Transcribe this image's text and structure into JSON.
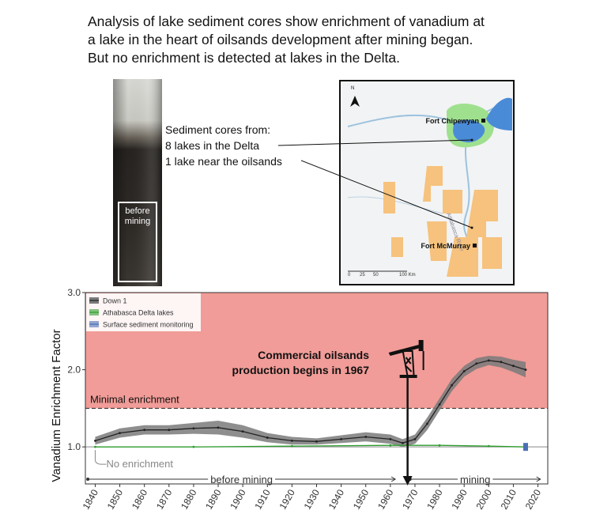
{
  "header": {
    "lines": [
      "Analysis of lake sediment cores show enrichment of vanadium at",
      "a lake in the heart of oilsands development after mining began.",
      "But no enrichment is detected at lakes in the Delta."
    ]
  },
  "photo": {
    "label": [
      "before",
      "mining"
    ]
  },
  "map": {
    "callout": [
      "Sediment cores from:",
      "8 lakes in the Delta",
      "1 lake near the oilsands"
    ],
    "north": "N",
    "river": "Athabasca River",
    "towns": [
      "Fort Chipewyan",
      "Fort McMurray"
    ],
    "scale": [
      "0",
      "25",
      "50",
      "100 Km"
    ]
  },
  "chart_data": {
    "type": "line",
    "ylabel": "Vanadium Enrichment Factor",
    "xlim": [
      1836,
      2024
    ],
    "ylim": [
      0.52,
      3.0
    ],
    "xticks": [
      1840,
      1850,
      1860,
      1870,
      1880,
      1890,
      1900,
      1910,
      1920,
      1930,
      1940,
      1950,
      1960,
      1970,
      1980,
      1990,
      2000,
      2010,
      2020
    ],
    "yticks": [
      {
        "value": 1,
        "label": "1.0"
      },
      {
        "value": 2,
        "label": "2.0"
      },
      {
        "value": 3,
        "label": "3.0"
      }
    ],
    "enrichment_zone": {
      "value": 1.5,
      "label": "Minimal enrichment",
      "color": "#f19c98"
    },
    "baseline": {
      "value": 1,
      "label": "No enrichment"
    },
    "event": {
      "x": 1967,
      "label": [
        "Commercial oilsands",
        "production begins in 1967"
      ]
    },
    "periods": [
      {
        "label": "before mining",
        "start": 1837,
        "end": 1962
      },
      {
        "label": "mining",
        "start": 1968,
        "end": 2021
      }
    ],
    "legend": "top-left",
    "series": [
      {
        "name": "Down 1",
        "color": "#222222",
        "band_color": "#7a7a7a",
        "x": [
          1840,
          1850,
          1860,
          1870,
          1880,
          1890,
          1900,
          1910,
          1920,
          1930,
          1940,
          1950,
          1960,
          1965,
          1970,
          1975,
          1980,
          1985,
          1990,
          1995,
          2000,
          2005,
          2010,
          2015
        ],
        "values": [
          1.08,
          1.18,
          1.22,
          1.22,
          1.24,
          1.25,
          1.2,
          1.12,
          1.08,
          1.07,
          1.1,
          1.13,
          1.1,
          1.05,
          1.1,
          1.3,
          1.55,
          1.8,
          1.98,
          2.08,
          2.12,
          2.1,
          2.05,
          2.0
        ],
        "ci_lower": [
          1.03,
          1.12,
          1.16,
          1.16,
          1.17,
          1.16,
          1.12,
          1.06,
          1.03,
          1.03,
          1.05,
          1.07,
          1.04,
          1.0,
          1.04,
          1.22,
          1.47,
          1.72,
          1.91,
          2.01,
          2.06,
          2.03,
          1.97,
          1.9
        ],
        "ci_upper": [
          1.13,
          1.24,
          1.28,
          1.28,
          1.31,
          1.34,
          1.28,
          1.18,
          1.13,
          1.11,
          1.15,
          1.19,
          1.16,
          1.1,
          1.16,
          1.38,
          1.63,
          1.88,
          2.05,
          2.15,
          2.18,
          2.17,
          2.13,
          2.1
        ]
      },
      {
        "name": "Athabasca Delta lakes",
        "color": "#2e9e2e",
        "x": [
          1840,
          1880,
          1920,
          1960,
          1980,
          2000,
          2015
        ],
        "values": [
          1.0,
          1.0,
          1.01,
          1.02,
          1.02,
          1.01,
          1.0
        ]
      },
      {
        "name": "Surface sediment monitoring",
        "color": "#4a6fb5",
        "x": [
          2015
        ],
        "values": [
          1.0
        ]
      }
    ]
  }
}
